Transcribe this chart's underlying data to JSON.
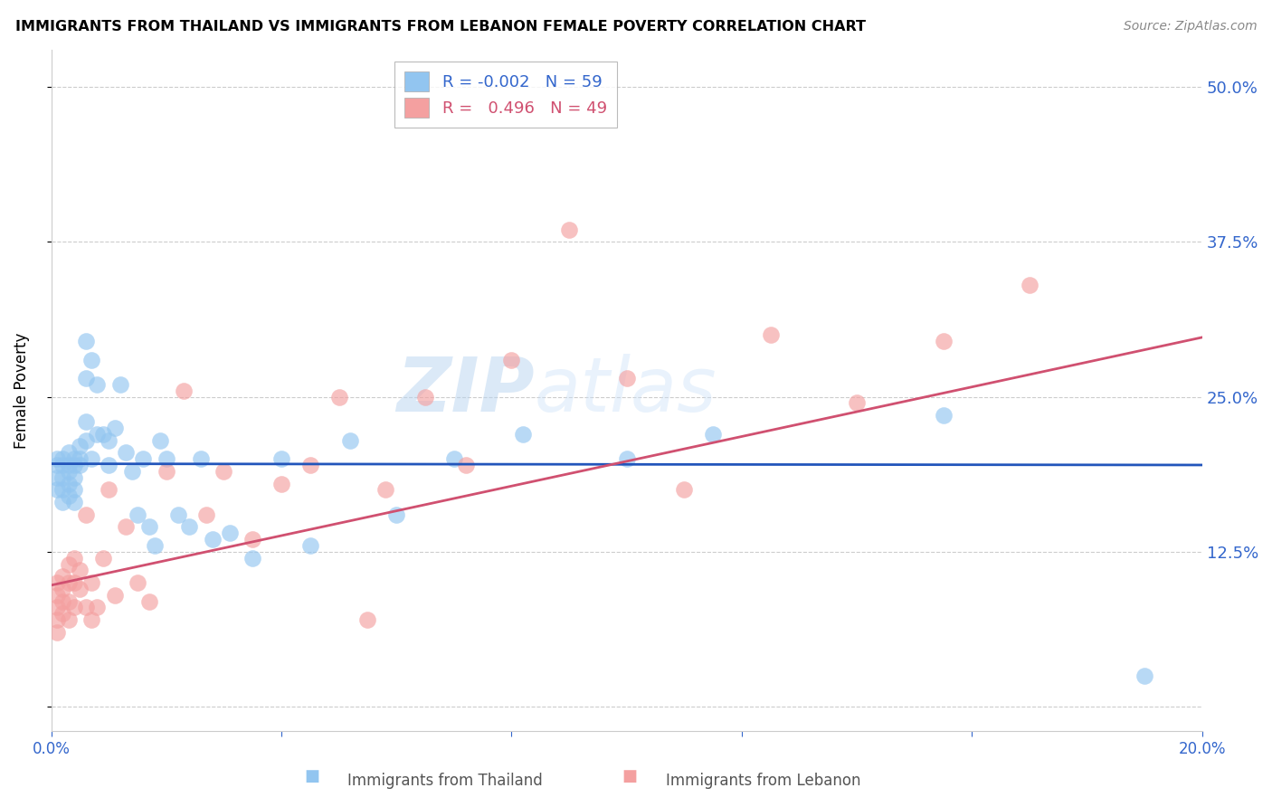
{
  "title": "IMMIGRANTS FROM THAILAND VS IMMIGRANTS FROM LEBANON FEMALE POVERTY CORRELATION CHART",
  "source": "Source: ZipAtlas.com",
  "ylabel": "Female Poverty",
  "xlim": [
    0.0,
    0.2
  ],
  "ylim": [
    -0.02,
    0.53
  ],
  "yticks": [
    0.0,
    0.125,
    0.25,
    0.375,
    0.5
  ],
  "ytick_labels": [
    "",
    "12.5%",
    "25.0%",
    "37.5%",
    "50.0%"
  ],
  "xticks": [
    0.0,
    0.04,
    0.08,
    0.12,
    0.16,
    0.2
  ],
  "xtick_labels": [
    "0.0%",
    "",
    "",
    "",
    "",
    "20.0%"
  ],
  "legend_r1": "R = -0.002   N = 59",
  "legend_r2": "R =   0.496   N = 49",
  "series1_color": "#92C5F0",
  "series2_color": "#F4A0A0",
  "trend1_color": "#2255BB",
  "trend2_color": "#D05070",
  "watermark": "ZIPatlas",
  "thailand_x": [
    0.001,
    0.001,
    0.001,
    0.001,
    0.002,
    0.002,
    0.002,
    0.002,
    0.002,
    0.003,
    0.003,
    0.003,
    0.003,
    0.003,
    0.004,
    0.004,
    0.004,
    0.004,
    0.004,
    0.005,
    0.005,
    0.005,
    0.006,
    0.006,
    0.006,
    0.006,
    0.007,
    0.007,
    0.008,
    0.008,
    0.009,
    0.01,
    0.01,
    0.011,
    0.012,
    0.013,
    0.014,
    0.015,
    0.016,
    0.017,
    0.018,
    0.019,
    0.02,
    0.022,
    0.024,
    0.026,
    0.028,
    0.031,
    0.035,
    0.04,
    0.045,
    0.052,
    0.06,
    0.07,
    0.082,
    0.1,
    0.115,
    0.155,
    0.19
  ],
  "thailand_y": [
    0.2,
    0.195,
    0.185,
    0.175,
    0.2,
    0.195,
    0.185,
    0.175,
    0.165,
    0.205,
    0.195,
    0.19,
    0.18,
    0.17,
    0.2,
    0.195,
    0.185,
    0.175,
    0.165,
    0.21,
    0.2,
    0.195,
    0.295,
    0.265,
    0.23,
    0.215,
    0.28,
    0.2,
    0.26,
    0.22,
    0.22,
    0.195,
    0.215,
    0.225,
    0.26,
    0.205,
    0.19,
    0.155,
    0.2,
    0.145,
    0.13,
    0.215,
    0.2,
    0.155,
    0.145,
    0.2,
    0.135,
    0.14,
    0.12,
    0.2,
    0.13,
    0.215,
    0.155,
    0.2,
    0.22,
    0.2,
    0.22,
    0.235,
    0.025
  ],
  "lebanon_x": [
    0.001,
    0.001,
    0.001,
    0.001,
    0.001,
    0.002,
    0.002,
    0.002,
    0.002,
    0.003,
    0.003,
    0.003,
    0.003,
    0.004,
    0.004,
    0.004,
    0.005,
    0.005,
    0.006,
    0.006,
    0.007,
    0.007,
    0.008,
    0.009,
    0.01,
    0.011,
    0.013,
    0.015,
    0.017,
    0.02,
    0.023,
    0.027,
    0.03,
    0.035,
    0.04,
    0.045,
    0.05,
    0.058,
    0.065,
    0.072,
    0.08,
    0.09,
    0.1,
    0.11,
    0.125,
    0.14,
    0.155,
    0.17,
    0.055
  ],
  "lebanon_y": [
    0.1,
    0.09,
    0.08,
    0.07,
    0.06,
    0.105,
    0.095,
    0.085,
    0.075,
    0.115,
    0.1,
    0.085,
    0.07,
    0.12,
    0.1,
    0.08,
    0.11,
    0.095,
    0.08,
    0.155,
    0.1,
    0.07,
    0.08,
    0.12,
    0.175,
    0.09,
    0.145,
    0.1,
    0.085,
    0.19,
    0.255,
    0.155,
    0.19,
    0.135,
    0.18,
    0.195,
    0.25,
    0.175,
    0.25,
    0.195,
    0.28,
    0.385,
    0.265,
    0.175,
    0.3,
    0.245,
    0.295,
    0.34,
    0.07
  ],
  "trend1_x": [
    0.0,
    0.2
  ],
  "trend1_y": [
    0.196,
    0.195
  ],
  "trend2_x": [
    0.0,
    0.2
  ],
  "trend2_y": [
    0.098,
    0.298
  ]
}
